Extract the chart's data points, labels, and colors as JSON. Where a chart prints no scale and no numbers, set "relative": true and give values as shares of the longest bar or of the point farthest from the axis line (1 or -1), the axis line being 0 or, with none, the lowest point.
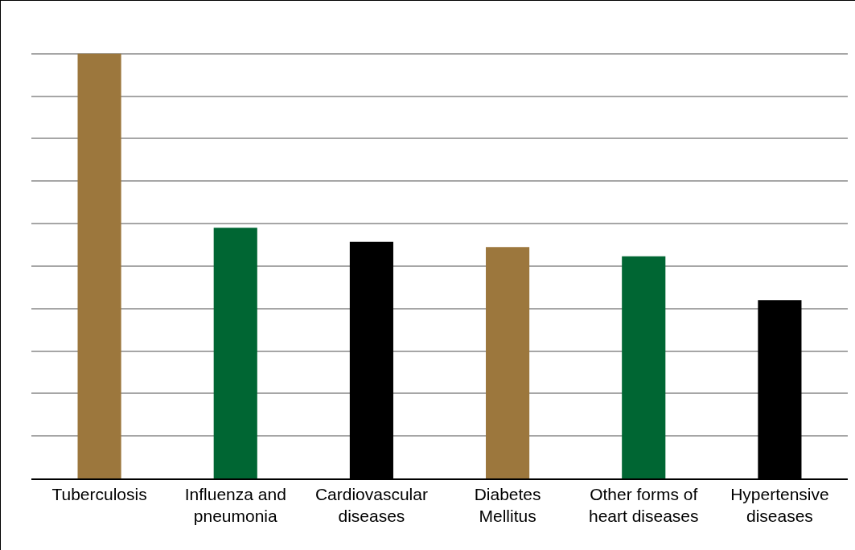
{
  "chart_data": {
    "type": "bar",
    "relative": true,
    "grid": "y",
    "legend": false,
    "categories": [
      "Tuberculosis",
      "Influenza and\npneumonia",
      "Cardiovascular\ndiseases",
      "Diabetes\nMellitus",
      "Other forms of\nheart diseases",
      "Hypertensive\ndiseases"
    ],
    "values": [
      1,
      0.59,
      0.557,
      0.545,
      0.523,
      0.42
    ],
    "colors": [
      "#9c773d",
      "#006633",
      "#000000",
      "#9c773d",
      "#006633",
      "#000000"
    ]
  }
}
